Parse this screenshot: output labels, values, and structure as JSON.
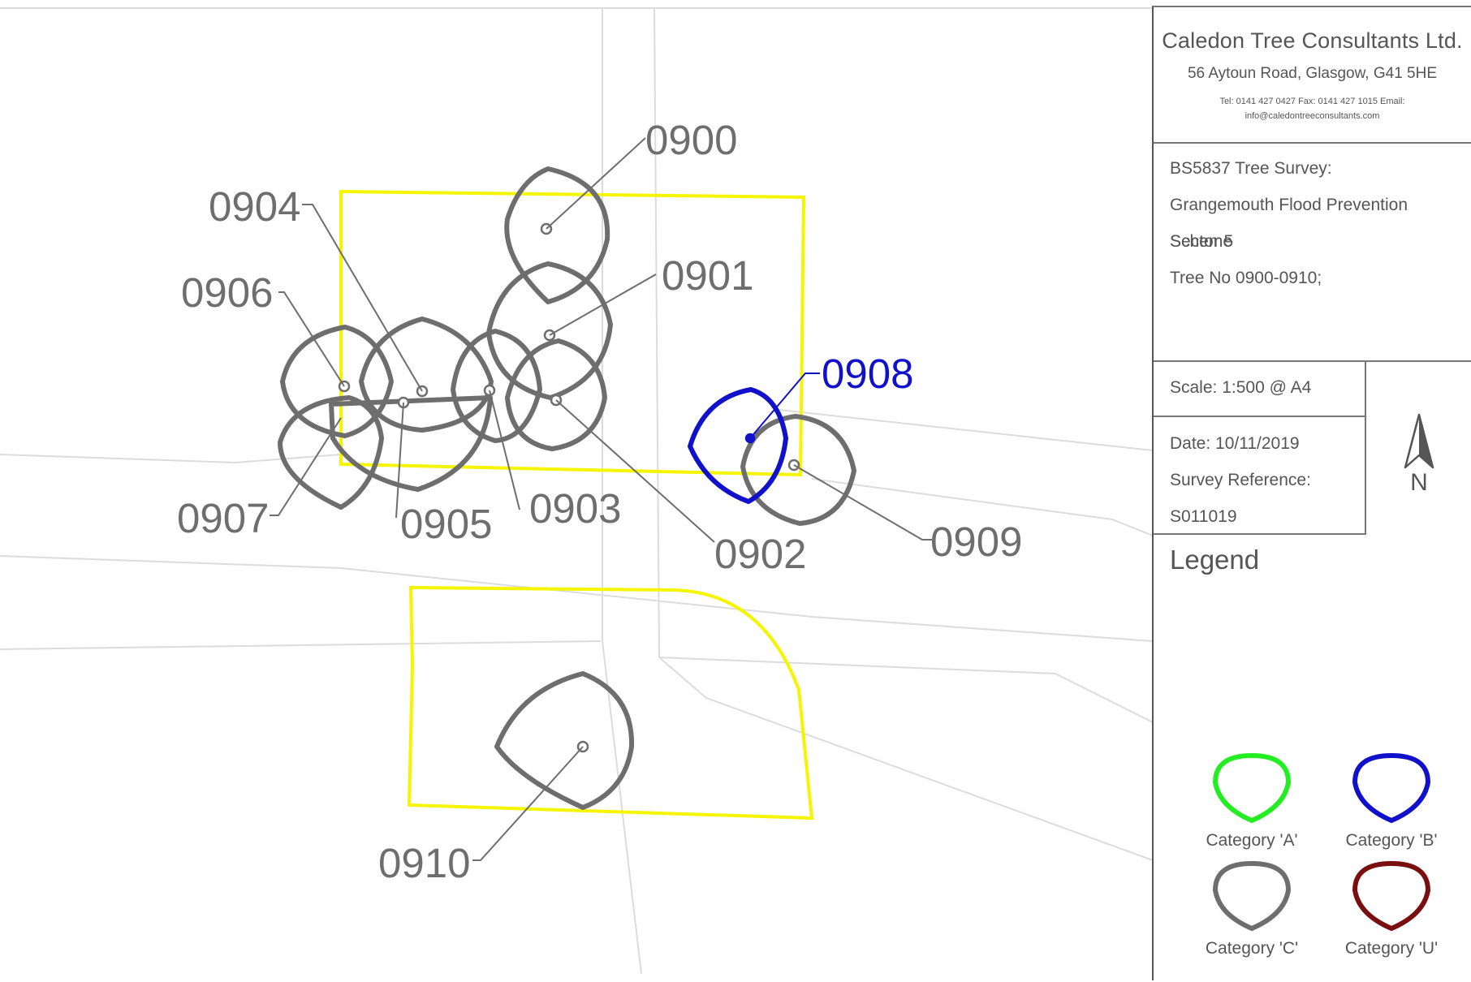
{
  "company": {
    "name": "Caledon Tree Consultants Ltd.",
    "address": "56 Aytoun Road, Glasgow, G41 5HE",
    "contact": "Tel: 0141 427 0427 Fax: 0141 427 1015 Email: info@caledontreeconsultants.com"
  },
  "project": {
    "line1": "BS5837 Tree Survey:",
    "line2": "Grangemouth Flood Prevention Scheme",
    "line3": "Sector 5",
    "line4": "Tree No 0900-0910;"
  },
  "scale": "Scale: 1:500 @ A4",
  "date": "Date: 10/11/2019",
  "survey_reference_label": "Survey Reference:",
  "survey_reference": "S011019",
  "north_label": "N",
  "legend": {
    "title": "Legend",
    "items": [
      {
        "label": "Category 'A'",
        "color": "#22ee22"
      },
      {
        "label": "Category 'B'",
        "color": "#1111cc"
      },
      {
        "label": "Category 'C'",
        "color": "#6e6e6e"
      },
      {
        "label": "Category 'U'",
        "color": "#7a0f0f"
      }
    ]
  },
  "colors": {
    "boundary": "#f5f500",
    "category_b": "#1111cc",
    "category_c": "#6e6e6e",
    "roads": "#dcdcdc"
  },
  "trees": [
    {
      "id": "0900",
      "category": "C"
    },
    {
      "id": "0901",
      "category": "C"
    },
    {
      "id": "0902",
      "category": "C"
    },
    {
      "id": "0903",
      "category": "C"
    },
    {
      "id": "0904",
      "category": "C"
    },
    {
      "id": "0905",
      "category": "C"
    },
    {
      "id": "0906",
      "category": "C"
    },
    {
      "id": "0907",
      "category": "C"
    },
    {
      "id": "0908",
      "category": "B"
    },
    {
      "id": "0909",
      "category": "C"
    },
    {
      "id": "0910",
      "category": "C"
    }
  ]
}
